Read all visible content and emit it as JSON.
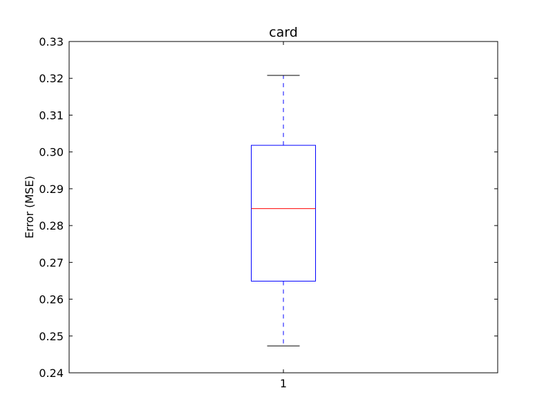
{
  "chart_data": {
    "type": "box",
    "title": "card",
    "xlabel": "",
    "ylabel": "Error (MSE)",
    "ylim": [
      0.24,
      0.33
    ],
    "yticks": [
      "0.24",
      "0.25",
      "0.26",
      "0.27",
      "0.28",
      "0.29",
      "0.30",
      "0.31",
      "0.32",
      "0.33"
    ],
    "categories": [
      "1"
    ],
    "boxes": [
      {
        "category": "1",
        "whisker_low": 0.2473,
        "q1": 0.2649,
        "median": 0.2846,
        "q3": 0.3018,
        "whisker_high": 0.3208
      }
    ],
    "grid": false,
    "colors": {
      "box": "#0000ff",
      "median": "#ff0000",
      "whisker": "#0000ff",
      "cap": "#000000",
      "frame": "#000000"
    }
  }
}
